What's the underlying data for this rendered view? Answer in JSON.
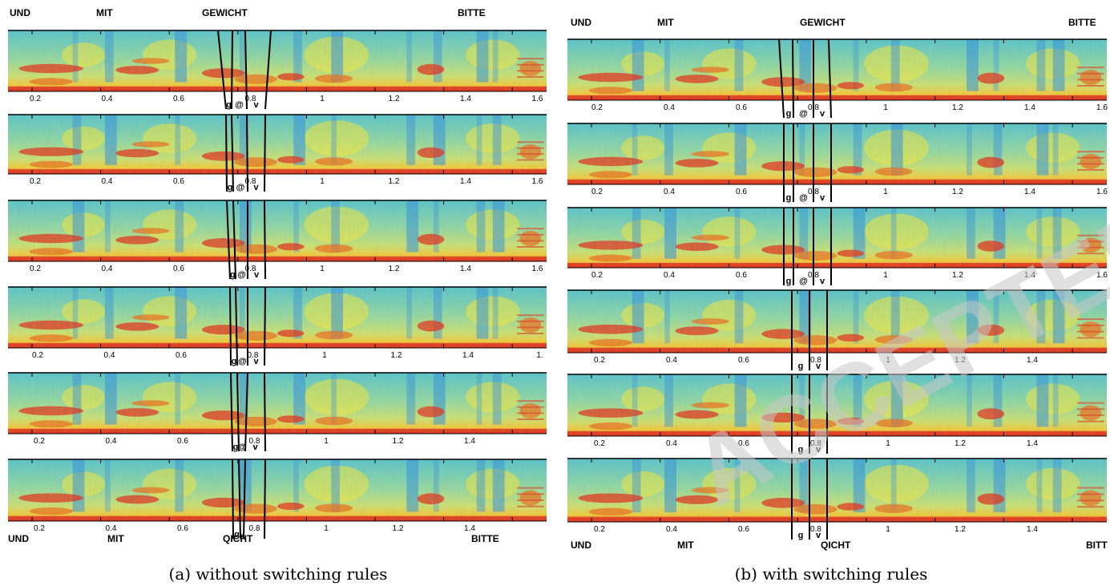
{
  "panels": [
    {
      "id": "a",
      "caption": "(a) without switching rules",
      "top_words": [
        "UND",
        "MIT",
        "GEWICHT",
        "BITTE"
      ],
      "bottom_words": [
        "UND",
        "MIT",
        "QICHT",
        "BITTE"
      ],
      "rows": [
        {
          "ticks": [
            "0.2",
            "0.4",
            "0.6",
            "0.8",
            "1",
            "1.2",
            "1.4",
            "1.6"
          ],
          "phones": [
            "g",
            "@",
            "v"
          ]
        },
        {
          "ticks": [
            "0.2",
            "0.4",
            "0.6",
            "0.8",
            "1",
            "1.2",
            "1.4",
            "1.6"
          ],
          "phones": [
            "g",
            "@",
            "v"
          ]
        },
        {
          "ticks": [
            "0.2",
            "0.4",
            "0.6",
            "0.8",
            "1",
            "1.2",
            "1.4",
            "1.6"
          ],
          "phones": [
            "g",
            "@",
            "v"
          ]
        },
        {
          "ticks": [
            "0.2",
            "0.4",
            "0.6",
            "0.8",
            "1",
            "1.2",
            "1.4",
            "1."
          ],
          "phones": [
            "g",
            "@",
            "v"
          ]
        },
        {
          "ticks": [
            "0.2",
            "0.4",
            "0.6",
            "0.8",
            "1",
            "1.2",
            "1.4"
          ],
          "phones": [
            "g",
            "@",
            "v"
          ]
        },
        {
          "ticks": [
            "0.2",
            "0.4",
            "0.6",
            "0.8",
            "1",
            "1.2",
            "1.4"
          ],
          "phones": [
            "g",
            "v"
          ]
        }
      ]
    },
    {
      "id": "b",
      "caption": "(b) with switching rules",
      "top_words": [
        "UND",
        "MIT",
        "GEWICHT",
        "BITTE"
      ],
      "bottom_words": [
        "UND",
        "MIT",
        "QICHT",
        "BITT"
      ],
      "rows": [
        {
          "ticks": [
            "0.2",
            "0.4",
            "0.6",
            "0.8",
            "1",
            "1.2",
            "1.4",
            "1.6"
          ],
          "phones": [
            "g",
            "@",
            "v"
          ]
        },
        {
          "ticks": [
            "0.2",
            "0.4",
            "0.6",
            "0.8",
            "1",
            "1.2",
            "1.4",
            "1.6"
          ],
          "phones": [
            "g",
            "@",
            "v"
          ]
        },
        {
          "ticks": [
            "0.2",
            "0.4",
            "0.6",
            "0.8",
            "1",
            "1.2",
            "1.4",
            "1.6"
          ],
          "phones": [
            "g",
            "@",
            "v"
          ]
        },
        {
          "ticks": [
            "0.2",
            "0.4",
            "0.6",
            "0.8",
            "1",
            "1.2",
            "1.4"
          ],
          "phones": [
            "g",
            "v"
          ]
        },
        {
          "ticks": [
            "0.2",
            "0.4",
            "0.6",
            "0.8",
            "1",
            "1.2",
            "1.4"
          ],
          "phones": [
            "g",
            "v"
          ]
        },
        {
          "ticks": [
            "0.2",
            "0.4",
            "0.6",
            "0.8",
            "1",
            "1.2",
            "1.4"
          ],
          "phones": [
            "g",
            "v"
          ]
        }
      ]
    }
  ],
  "watermark": "ACCEPTED",
  "colors": {
    "spec_low": "#2f8fd8",
    "spec_mid": "#7fd3a0",
    "spec_high": "#f2e83a",
    "spec_peak": "#e0301a",
    "boundary": "#000000"
  }
}
